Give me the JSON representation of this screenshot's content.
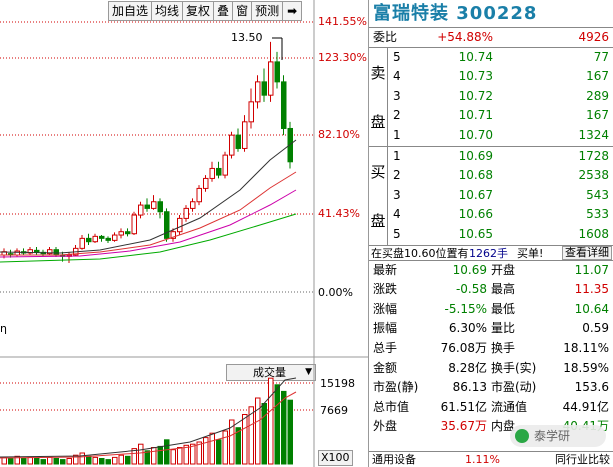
{
  "toolbar": {
    "buttons": [
      "加自选",
      "均线",
      "复权",
      "叠",
      "窗",
      "预测",
      "➡"
    ]
  },
  "chart_data": [
    {
      "type": "candlestick",
      "title": "",
      "y_axis_labels": [
        "141.55%",
        "123.30%",
        "82.10%",
        "41.43%",
        "0.00%"
      ],
      "peak_annotation": "13.50",
      "note": "daily candlesticks rising from ~10.6 to peak 13.50 then falling to ~11.1, with moving average lines"
    },
    {
      "type": "bar",
      "title": "成交量",
      "y_axis_labels": [
        "15198",
        "7669"
      ],
      "unit_label": "X100"
    }
  ],
  "left_edge_label": "η",
  "indicator": {
    "label": "成交量"
  },
  "quote": {
    "title": "富瑞特装 300228",
    "weibi_label": "委比",
    "weibi_value": "+54.88%",
    "weicha_value": "4926",
    "sell_side_label": [
      "卖",
      "盘"
    ],
    "buy_side_label": [
      "买",
      "盘"
    ],
    "sell": [
      {
        "level": "5",
        "price": "10.74",
        "vol": "77"
      },
      {
        "level": "4",
        "price": "10.73",
        "vol": "167"
      },
      {
        "level": "3",
        "price": "10.72",
        "vol": "289"
      },
      {
        "level": "2",
        "price": "10.71",
        "vol": "167"
      },
      {
        "level": "1",
        "price": "10.70",
        "vol": "1324"
      }
    ],
    "buy": [
      {
        "level": "1",
        "price": "10.69",
        "vol": "1728"
      },
      {
        "level": "2",
        "price": "10.68",
        "vol": "2538"
      },
      {
        "level": "3",
        "price": "10.67",
        "vol": "543"
      },
      {
        "level": "4",
        "price": "10.66",
        "vol": "533"
      },
      {
        "level": "5",
        "price": "10.65",
        "vol": "1608"
      }
    ],
    "trade_bar": {
      "text": "在买盘10.60位置有",
      "qty": "1262手",
      "buy_btn": "买单!",
      "detail_btn": "查看详细"
    },
    "stats": [
      {
        "l1": "最新",
        "v1": "10.69",
        "c1": "green",
        "l2": "开盘",
        "v2": "11.07",
        "c2": "green"
      },
      {
        "l1": "涨跌",
        "v1": "-0.58",
        "c1": "green",
        "l2": "最高",
        "v2": "11.35",
        "c2": "red"
      },
      {
        "l1": "涨幅",
        "v1": "-5.15%",
        "c1": "green",
        "l2": "最低",
        "v2": "10.64",
        "c2": "green"
      },
      {
        "l1": "振幅",
        "v1": "6.30%",
        "c1": "black",
        "l2": "量比",
        "v2": "0.59",
        "c2": "black"
      },
      {
        "l1": "总手",
        "v1": "76.08万",
        "c1": "black",
        "l2": "换手",
        "v2": "18.11%",
        "c2": "black"
      },
      {
        "l1": "金额",
        "v1": "8.28亿",
        "c1": "black",
        "l2": "换手(实)",
        "v2": "18.59%",
        "c2": "black"
      },
      {
        "l1": "市盈(静)",
        "v1": "86.13",
        "c1": "black",
        "l2": "市盈(动)",
        "v2": "153.6",
        "c2": "black"
      },
      {
        "l1": "总市值",
        "v1": "61.51亿",
        "c1": "black",
        "l2": "流通值",
        "v2": "44.91亿",
        "c2": "black"
      },
      {
        "l1": "外盘",
        "v1": "35.67万",
        "c1": "red",
        "l2": "内盘",
        "v2": "40.41万",
        "c2": "green"
      }
    ],
    "bottom_bar": {
      "industry": "通用设备",
      "industry_pct": "1.11%",
      "compare": "同行业比较"
    }
  },
  "watermark": {
    "text": "泰学研"
  },
  "colors": {
    "up": "#d00000",
    "down": "#008000",
    "title": "#1a7fa8"
  }
}
